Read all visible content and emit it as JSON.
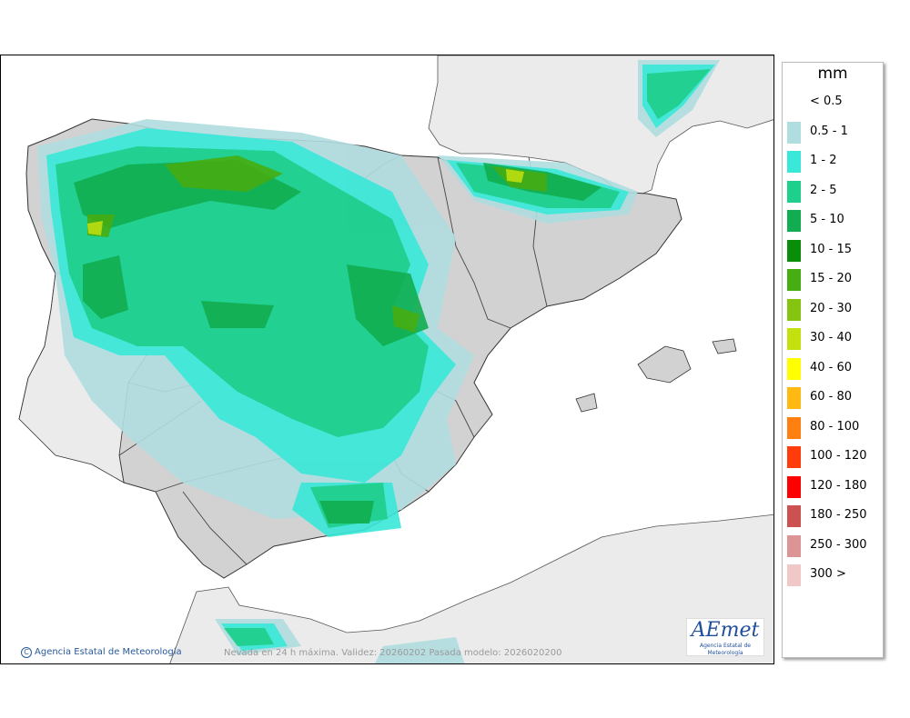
{
  "legend": {
    "unit": "mm",
    "items": [
      {
        "label": "< 0.5",
        "color": ""
      },
      {
        "label": "0.5 - 1",
        "color": "#b0dde0"
      },
      {
        "label": "1 - 2",
        "color": "#39e8d8"
      },
      {
        "label": "2 - 5",
        "color": "#1fcf8c"
      },
      {
        "label": "5 - 10",
        "color": "#12ad50"
      },
      {
        "label": "10 - 15",
        "color": "#0a8e0a"
      },
      {
        "label": "15 - 20",
        "color": "#46ad12"
      },
      {
        "label": "20 - 30",
        "color": "#86c412"
      },
      {
        "label": "30 - 40",
        "color": "#c4e10f"
      },
      {
        "label": "40 - 60",
        "color": "#ffff00"
      },
      {
        "label": "60 - 80",
        "color": "#ffb912"
      },
      {
        "label": "80 - 100",
        "color": "#ff7f10"
      },
      {
        "label": "100 - 120",
        "color": "#ff3c0a"
      },
      {
        "label": "120 - 180",
        "color": "#ff0000"
      },
      {
        "label": "180 - 250",
        "color": "#cc5252"
      },
      {
        "label": "250 - 300",
        "color": "#dd9494"
      },
      {
        "label": "300 >",
        "color": "#f0c8c8"
      }
    ]
  },
  "map": {
    "credit": "Agencia Estatal de Meteorología",
    "caption": "Nevada en 24 h máxima. Validez: 20260202 Pasada modelo: 2026020200",
    "logo": {
      "brand": "AEmet",
      "sub": "Agencia Estatal de Meteorología"
    }
  }
}
